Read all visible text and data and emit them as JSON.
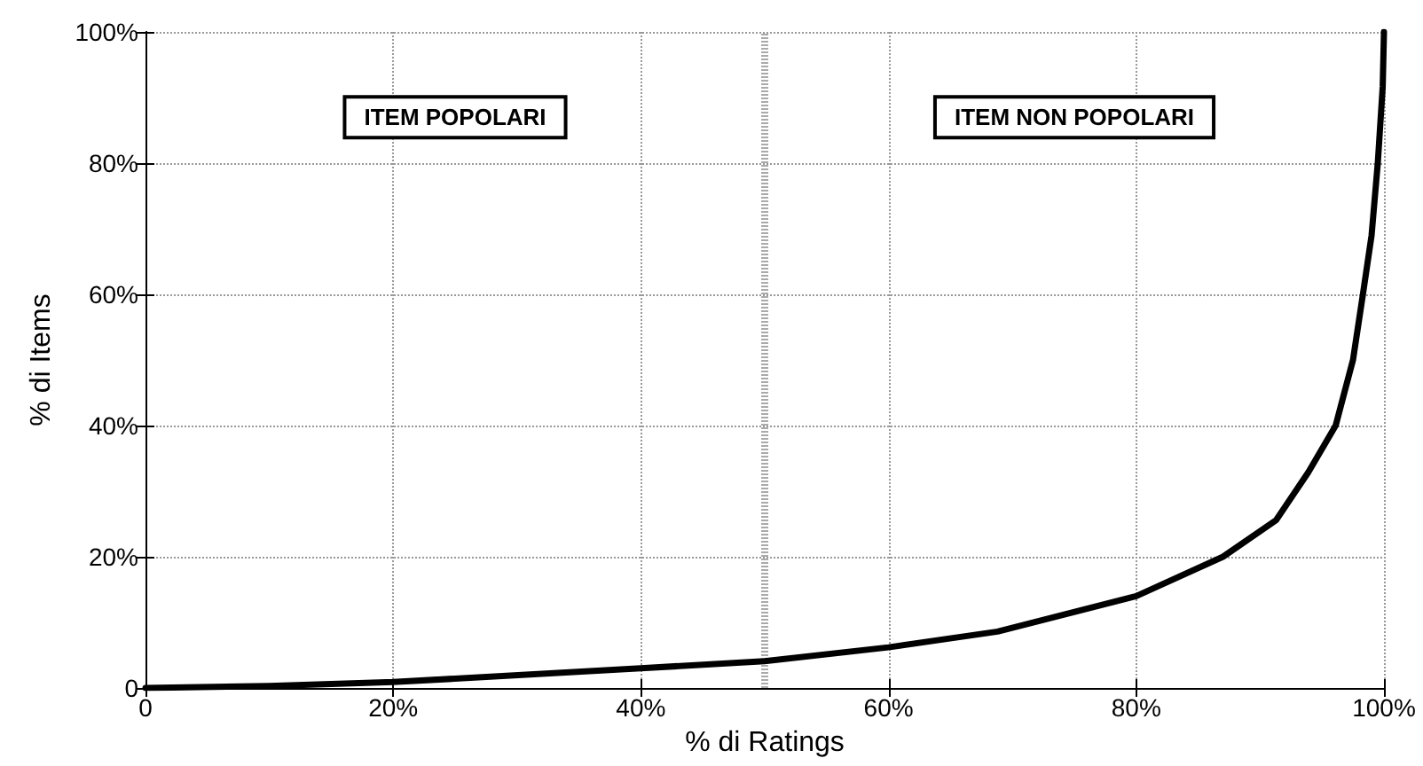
{
  "chart_data": {
    "type": "line",
    "xlabel": "% di Ratings",
    "ylabel": "% di Items",
    "x": [
      0,
      10,
      20,
      40,
      50,
      60,
      68.8,
      80,
      87,
      91.3,
      93.9,
      96.1,
      97.5,
      98.3,
      99,
      99.5,
      99.9,
      100
    ],
    "series": [
      {
        "color": "#000000",
        "values": [
          0,
          0.3,
          0.9,
          3,
          4.1,
          6.2,
          8.6,
          14,
          20,
          25.6,
          32.9,
          40,
          50,
          60,
          69,
          80,
          91.7,
          100
        ]
      }
    ],
    "xlim": [
      0,
      100
    ],
    "ylim": [
      0,
      100
    ],
    "xticks": [
      0,
      {
        "value": 20,
        "label": "20%"
      },
      {
        "value": 40,
        "label": "40%"
      },
      {
        "value": 60,
        "label": "60%"
      },
      {
        "value": 80,
        "label": "80%"
      },
      {
        "value": 100,
        "label": "100%"
      }
    ],
    "yticks": [
      0,
      {
        "value": 20,
        "label": "20%"
      },
      {
        "value": 40,
        "label": "40%"
      },
      {
        "value": 60,
        "label": "60%"
      },
      {
        "value": 80,
        "label": "80%"
      },
      {
        "value": 100,
        "label": "100%"
      }
    ],
    "grid": true,
    "marker": "none",
    "line_style": "solid",
    "ref_lines": [
      {
        "axis": "x",
        "value": 50,
        "color": "#aaaaaa",
        "line_style": "dashed"
      }
    ],
    "annotations": [
      "ITEM POPOLARI",
      "ITEM NON POPOLARI"
    ]
  }
}
